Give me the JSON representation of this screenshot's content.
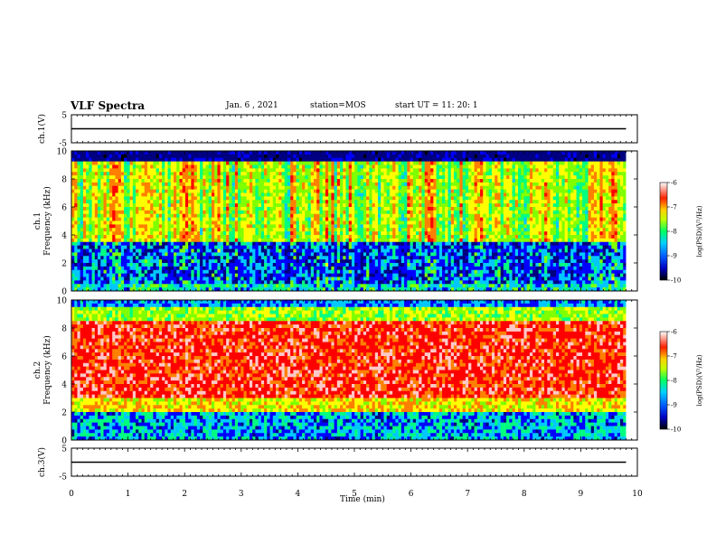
{
  "header": {
    "title": "VLF Spectra",
    "date": "Jan. 6 , 2021",
    "station": "station=MOS",
    "start_ut": "start UT =  11: 20: 1"
  },
  "chart_data": [
    {
      "type": "line",
      "panel": "waveform-ch1",
      "ylabel": "ch.1(V)",
      "ylim": [
        -5,
        5
      ],
      "yticks": [
        "5",
        "-5"
      ],
      "xlim": [
        0,
        10
      ],
      "series": [
        {
          "x": [
            0,
            9.8
          ],
          "values": [
            0,
            0
          ]
        }
      ]
    },
    {
      "type": "heatmap",
      "panel": "spectrogram-ch1",
      "ylabel": "ch.1 Frequency (kHz)",
      "ylim": [
        0,
        10
      ],
      "yticks": [
        "0",
        "2",
        "4",
        "6",
        "8",
        "10"
      ],
      "xlim": [
        0,
        10
      ],
      "data_x_end": 9.8,
      "colorbar": {
        "label": "log(PSD)(V²/Hz)",
        "range": [
          -10,
          -6
        ],
        "ticks": [
          "-6",
          "-7",
          "-8",
          "-9",
          "-10"
        ]
      }
    },
    {
      "type": "heatmap",
      "panel": "spectrogram-ch2",
      "ylabel": "ch.2 Frequency (kHz)",
      "ylim": [
        0,
        10
      ],
      "yticks": [
        "0",
        "2",
        "4",
        "6",
        "8",
        "10"
      ],
      "xlim": [
        0,
        10
      ],
      "data_x_end": 9.8,
      "colorbar": {
        "label": "log(PSD)(V²/Hz)",
        "range": [
          -10,
          -6
        ],
        "ticks": [
          "-6",
          "-7",
          "-8",
          "-9",
          "-10"
        ]
      }
    },
    {
      "type": "line",
      "panel": "waveform-ch3",
      "ylabel": "ch.3(V)",
      "ylim": [
        -5,
        5
      ],
      "yticks": [
        "5",
        "-5"
      ],
      "xlim": [
        0,
        10
      ],
      "series": [
        {
          "x": [
            0,
            9.8
          ],
          "values": [
            0,
            0
          ]
        }
      ]
    }
  ],
  "x_axis": {
    "label": "Time (min)",
    "ticks": [
      "0",
      "1",
      "2",
      "3",
      "4",
      "5",
      "6",
      "7",
      "8",
      "9",
      "10"
    ]
  },
  "colormap": [
    "#000000",
    "#000080",
    "#0000ff",
    "#00c8ff",
    "#00ff80",
    "#80ff00",
    "#ffff00",
    "#ff8000",
    "#ff0000",
    "#ffc8c8"
  ]
}
